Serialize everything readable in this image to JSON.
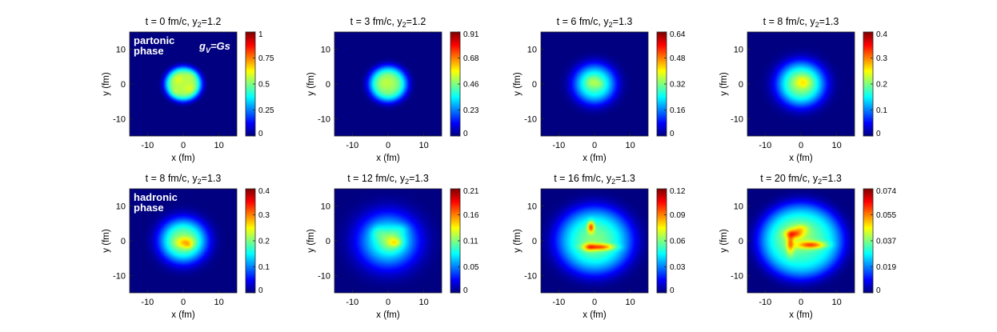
{
  "chart_data": [
    {
      "type": "heatmap",
      "title": "t = 0 fm/c, y",
      "title_sub": "2",
      "title_tail": "=1.2",
      "xlabel": "x (fm)",
      "ylabel": "y (fm)",
      "xlim": [
        -15,
        15
      ],
      "ylim": [
        -15,
        15
      ],
      "xticks": [
        -10,
        0,
        10
      ],
      "yticks": [
        -10,
        0,
        10
      ],
      "colorbar": {
        "min": 0,
        "max": 1,
        "ticks": [
          "0",
          "0.25",
          "0.5",
          "0.75",
          "1"
        ]
      },
      "annotations": [
        "partonic",
        "phase"
      ],
      "gv_label": {
        "g": "g",
        "sub": "V",
        "tail": "=Gs"
      },
      "blobs": [
        {
          "x": 0,
          "y": 0,
          "sx": 5.2,
          "sy": 5.0,
          "a": 0.55,
          "p": 5
        },
        {
          "x": -1.5,
          "y": 1.5,
          "sx": 1.4,
          "sy": 1.4,
          "a": 0.05
        },
        {
          "x": 2,
          "y": -1.5,
          "sx": 1.5,
          "sy": 1.5,
          "a": 0.05
        },
        {
          "x": -2.5,
          "y": -2.5,
          "sx": 1.3,
          "sy": 1.3,
          "a": 0.04
        },
        {
          "x": 2.5,
          "y": 2.5,
          "sx": 1.3,
          "sy": 1.3,
          "a": 0.04
        }
      ]
    },
    {
      "type": "heatmap",
      "title": "t = 3 fm/c, y",
      "title_sub": "2",
      "title_tail": "=1.2",
      "xlabel": "x (fm)",
      "ylabel": "y (fm)",
      "xlim": [
        -15,
        15
      ],
      "ylim": [
        -15,
        15
      ],
      "xticks": [
        -10,
        0,
        10
      ],
      "yticks": [
        -10,
        0,
        10
      ],
      "colorbar": {
        "min": 0,
        "max": 0.91,
        "ticks": [
          "0",
          "0.23",
          "0.46",
          "0.68",
          "0.91"
        ]
      },
      "blobs": [
        {
          "x": 0,
          "y": 0,
          "sx": 5.4,
          "sy": 5.2,
          "a": 0.47,
          "p": 4
        },
        {
          "x": -0.5,
          "y": 0.5,
          "sx": 2.2,
          "sy": 2.0,
          "a": 0.04
        }
      ]
    },
    {
      "type": "heatmap",
      "title": "t = 6 fm/c, y",
      "title_sub": "2",
      "title_tail": "=1.3",
      "xlabel": "x (fm)",
      "ylabel": "y (fm)",
      "xlim": [
        -15,
        15
      ],
      "ylim": [
        -15,
        15
      ],
      "xticks": [
        -10,
        0,
        10
      ],
      "yticks": [
        -10,
        0,
        10
      ],
      "colorbar": {
        "min": 0,
        "max": 0.64,
        "ticks": [
          "0",
          "0.16",
          "0.32",
          "0.48",
          "0.64"
        ]
      },
      "blobs": [
        {
          "x": 0,
          "y": 0,
          "sx": 6.0,
          "sy": 5.8,
          "a": 0.28,
          "p": 3
        },
        {
          "x": -0.5,
          "y": 0.5,
          "sx": 2.0,
          "sy": 1.8,
          "a": 0.07
        },
        {
          "x": 1.5,
          "y": 0,
          "sx": 1.2,
          "sy": 1.2,
          "a": 0.03
        }
      ]
    },
    {
      "type": "heatmap",
      "title": "t = 8 fm/c, y",
      "title_sub": "2",
      "title_tail": "=1.3",
      "xlabel": "x (fm)",
      "ylabel": "y (fm)",
      "xlim": [
        -15,
        15
      ],
      "ylim": [
        -15,
        15
      ],
      "xticks": [
        -10,
        0,
        10
      ],
      "yticks": [
        -10,
        0,
        10
      ],
      "colorbar": {
        "min": 0,
        "max": 0.4,
        "ticks": [
          "0",
          "0.1",
          "0.2",
          "0.3",
          "0.4"
        ]
      },
      "blobs": [
        {
          "x": 0,
          "y": 0,
          "sx": 6.8,
          "sy": 6.5,
          "a": 0.2,
          "p": 3
        },
        {
          "x": 0.5,
          "y": 0.5,
          "sx": 2.2,
          "sy": 1.8,
          "a": 0.06
        }
      ]
    },
    {
      "type": "heatmap",
      "title": "t = 8 fm/c, y",
      "title_sub": "2",
      "title_tail": "=1.3",
      "xlabel": "x (fm)",
      "ylabel": "y (fm)",
      "xlim": [
        -15,
        15
      ],
      "ylim": [
        -15,
        15
      ],
      "xticks": [
        -10,
        0,
        10
      ],
      "yticks": [
        -10,
        0,
        10
      ],
      "colorbar": {
        "min": 0,
        "max": 0.4,
        "ticks": [
          "0",
          "0.1",
          "0.2",
          "0.3",
          "0.4"
        ]
      },
      "annotations": [
        "hadronic",
        "phase"
      ],
      "blobs": [
        {
          "x": 0,
          "y": 0,
          "sx": 6.8,
          "sy": 6.5,
          "a": 0.2,
          "p": 3
        },
        {
          "x": 0.5,
          "y": -0.5,
          "sx": 2.5,
          "sy": 1.5,
          "a": 0.08
        },
        {
          "x": 1.5,
          "y": -1.5,
          "sx": 1.0,
          "sy": 1.0,
          "a": 0.03
        }
      ]
    },
    {
      "type": "heatmap",
      "title": "t = 12 fm/c, y",
      "title_sub": "2",
      "title_tail": "=1.3",
      "xlabel": "x (fm)",
      "ylabel": "y (fm)",
      "xlim": [
        -15,
        15
      ],
      "ylim": [
        -15,
        15
      ],
      "xticks": [
        -10,
        0,
        10
      ],
      "yticks": [
        -10,
        0,
        10
      ],
      "colorbar": {
        "min": 0,
        "max": 0.21,
        "ticks": [
          "0",
          "0.05",
          "0.11",
          "0.16",
          "0.21"
        ]
      },
      "blobs": [
        {
          "x": 0,
          "y": 0,
          "sx": 8.5,
          "sy": 8.0,
          "a": 0.085,
          "p": 2.5
        },
        {
          "x": 1,
          "y": 0,
          "sx": 3.2,
          "sy": 2.8,
          "a": 0.035
        },
        {
          "x": 2,
          "y": -0.5,
          "sx": 1.5,
          "sy": 1.0,
          "a": 0.025
        },
        {
          "x": -3,
          "y": 2.5,
          "sx": 2.0,
          "sy": 2.0,
          "a": 0.015
        },
        {
          "x": 4,
          "y": 3.5,
          "sx": 2.2,
          "sy": 1.5,
          "a": 0.012
        }
      ]
    },
    {
      "type": "heatmap",
      "title": "t = 16 fm/c, y",
      "title_sub": "2",
      "title_tail": "=1.3",
      "xlabel": "x (fm)",
      "ylabel": "y (fm)",
      "xlim": [
        -15,
        15
      ],
      "ylim": [
        -15,
        15
      ],
      "xticks": [
        -10,
        0,
        10
      ],
      "yticks": [
        -10,
        0,
        10
      ],
      "colorbar": {
        "min": 0,
        "max": 0.12,
        "ticks": [
          "0",
          "0.03",
          "0.06",
          "0.09",
          "0.12"
        ]
      },
      "blobs": [
        {
          "x": 0,
          "y": 0,
          "sx": 11,
          "sy": 10,
          "a": 0.045,
          "p": 4
        },
        {
          "x": 0,
          "y": 0,
          "sx": 6,
          "sy": 6,
          "a": 0.015
        },
        {
          "x": -1,
          "y": 4,
          "sx": 0.9,
          "sy": 1.6,
          "a": 0.045
        },
        {
          "x": 1.5,
          "y": -1.8,
          "sx": 4.0,
          "sy": 0.9,
          "a": 0.04
        },
        {
          "x": -1.5,
          "y": -1.8,
          "sx": 1.5,
          "sy": 1.2,
          "a": 0.02
        }
      ]
    },
    {
      "type": "heatmap",
      "title": "t = 20 fm/c, y",
      "title_sub": "2",
      "title_tail": "=1.3",
      "xlabel": "x (fm)",
      "ylabel": "y (fm)",
      "xlim": [
        -15,
        15
      ],
      "ylim": [
        -15,
        15
      ],
      "xticks": [
        -10,
        0,
        10
      ],
      "yticks": [
        -10,
        0,
        10
      ],
      "colorbar": {
        "min": 0,
        "max": 0.074,
        "ticks": [
          "0",
          "0.019",
          "0.037",
          "0.055",
          "0.074"
        ]
      },
      "blobs": [
        {
          "x": 0,
          "y": 0,
          "sx": 12,
          "sy": 11,
          "a": 0.03,
          "p": 5
        },
        {
          "x": -1,
          "y": 1,
          "sx": 6,
          "sy": 5,
          "a": 0.01
        },
        {
          "x": -2,
          "y": 2,
          "sx": 2.4,
          "sy": 1.2,
          "a": 0.02
        },
        {
          "x": -3,
          "y": -1,
          "sx": 1.0,
          "sy": 3.0,
          "a": 0.018
        },
        {
          "x": 3,
          "y": -1.2,
          "sx": 3.8,
          "sy": 1.0,
          "a": 0.025
        },
        {
          "x": 0,
          "y": 3.5,
          "sx": 2.0,
          "sy": 1.2,
          "a": 0.01
        }
      ]
    }
  ]
}
